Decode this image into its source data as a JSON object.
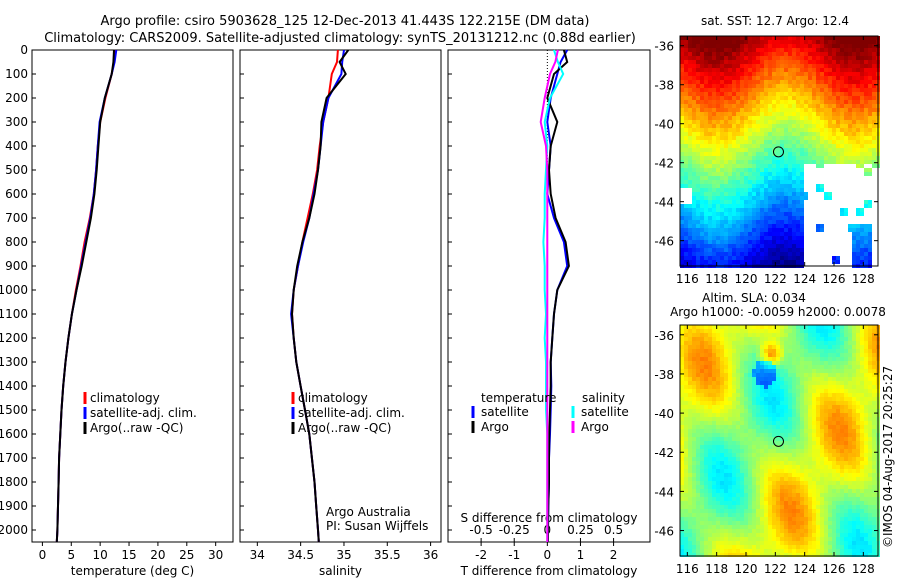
{
  "title_line1": "Argo profile: csiro 5903628_125 12-Dec-2013 41.443S 122.215E (DM data)",
  "title_line2": "Climatology: CARS2009. Satellite-adjusted climatology: synTS_20131212.nc (0.88d earlier)",
  "colors": {
    "climatology": "#ff0000",
    "satellite": "#0000ff",
    "argo": "#000000",
    "sal_satellite": "#00ffff",
    "sal_argo": "#ff00ff"
  },
  "chart_data": [
    {
      "type": "line",
      "xlabel": "temperature (deg C)",
      "ylabel": "depth",
      "xlim": [
        -1.8,
        33
      ],
      "ylim": [
        0,
        2050
      ],
      "xticks": [
        0,
        5,
        10,
        15,
        20,
        25,
        30
      ],
      "yticks": [
        0,
        100,
        200,
        300,
        400,
        500,
        600,
        700,
        800,
        900,
        1000,
        1100,
        1200,
        1300,
        1400,
        1500,
        1600,
        1700,
        1800,
        1900,
        2000
      ],
      "legend": [
        "climatology",
        "satellite-adj. clim.",
        "Argo(..raw -QC)"
      ],
      "depth": [
        0,
        50,
        100,
        200,
        300,
        400,
        500,
        600,
        700,
        800,
        900,
        1000,
        1100,
        1200,
        1300,
        1400,
        1500,
        1600,
        1700,
        1800,
        1900,
        2000,
        2050
      ],
      "series": [
        {
          "name": "climatology",
          "values": [
            12.6,
            12.4,
            12.0,
            10.9,
            10.0,
            9.6,
            9.3,
            8.9,
            8.2,
            7.3,
            6.6,
            5.8,
            5.1,
            4.5,
            4.0,
            3.6,
            3.3,
            3.1,
            2.9,
            2.8,
            2.7,
            2.6,
            2.5
          ]
        },
        {
          "name": "satellite-adj. clim.",
          "values": [
            12.8,
            12.5,
            12.0,
            10.8,
            9.9,
            9.6,
            9.3,
            8.9,
            8.3,
            7.5,
            6.7,
            5.9,
            5.1,
            4.5,
            4.0,
            3.6,
            3.3,
            3.1,
            2.9,
            2.8,
            2.7,
            2.6,
            2.5
          ]
        },
        {
          "name": "Argo(..raw -QC)",
          "values": [
            12.4,
            12.3,
            12.0,
            10.8,
            10.0,
            9.7,
            9.4,
            9.0,
            8.4,
            7.6,
            6.8,
            5.9,
            5.1,
            4.5,
            4.0,
            3.6,
            3.3,
            3.1,
            2.9,
            2.8,
            2.7,
            2.6,
            2.5
          ]
        }
      ]
    },
    {
      "type": "line",
      "xlabel": "salinity",
      "xlim": [
        33.8,
        36.12
      ],
      "ylim": [
        0,
        2050
      ],
      "xticks": [
        34,
        34.5,
        35,
        35.5,
        36
      ],
      "legend": [
        "climatology",
        "satellite-adj. clim.",
        "Argo(..raw -QC)"
      ],
      "annotation": [
        "Argo Australia",
        "PI: Susan Wijffels"
      ],
      "depth": [
        0,
        50,
        100,
        200,
        300,
        400,
        500,
        600,
        700,
        800,
        900,
        1000,
        1100,
        1200,
        1300,
        1400,
        1500,
        1600,
        1700,
        1800,
        1900,
        2000,
        2050
      ],
      "series": [
        {
          "name": "climatology",
          "values": [
            34.93,
            34.92,
            34.86,
            34.82,
            34.76,
            34.72,
            34.69,
            34.64,
            34.58,
            34.52,
            34.47,
            34.42,
            34.4,
            34.42,
            34.45,
            34.5,
            34.55,
            34.6,
            34.63,
            34.66,
            34.68,
            34.7,
            34.71
          ]
        },
        {
          "name": "satellite-adj. clim.",
          "values": [
            35.0,
            34.98,
            34.97,
            34.82,
            34.76,
            34.73,
            34.7,
            34.65,
            34.6,
            34.53,
            34.47,
            34.42,
            34.39,
            34.42,
            34.45,
            34.5,
            34.55,
            34.6,
            34.63,
            34.66,
            34.68,
            34.7,
            34.71
          ]
        },
        {
          "name": "Argo(..raw -QC)",
          "values": [
            35.05,
            34.95,
            35.02,
            34.8,
            34.74,
            34.73,
            34.7,
            34.66,
            34.6,
            34.52,
            34.46,
            34.42,
            34.4,
            34.42,
            34.45,
            34.5,
            34.55,
            34.6,
            34.63,
            34.66,
            34.68,
            34.7,
            34.71
          ]
        }
      ]
    },
    {
      "type": "line",
      "xlabel": "T difference from climatology",
      "xlabel2": "S difference from climatology",
      "xlim": [
        -3.0,
        3.1
      ],
      "ylim": [
        0,
        2050
      ],
      "xticks": [
        -2,
        -1,
        0,
        1,
        2
      ],
      "xticks2": [
        -0.5,
        -0.25,
        0,
        0.25,
        0.5
      ],
      "legend_headers": [
        "temperature",
        "salinity"
      ],
      "legend": [
        "satellite",
        "Argo",
        "satellite",
        "Argo"
      ],
      "depth": [
        0,
        50,
        100,
        200,
        300,
        400,
        500,
        600,
        700,
        800,
        900,
        1000,
        1100,
        1200,
        1300,
        1400,
        1500,
        1600,
        1700,
        1800,
        1900,
        2000,
        2050
      ],
      "series": [
        {
          "name": "T satellite",
          "values": [
            0.6,
            0.4,
            0.3,
            0.1,
            0.0,
            0.1,
            0.05,
            0.0,
            0.2,
            0.5,
            0.6,
            0.3,
            0.2,
            0.15,
            0.1,
            0.12,
            0.1,
            0.08,
            0.05,
            0.05,
            0.03,
            0.02,
            0.02
          ]
        },
        {
          "name": "T Argo",
          "values": [
            0.5,
            0.6,
            0.2,
            0.0,
            0.3,
            0.1,
            0.05,
            0.1,
            0.25,
            0.55,
            0.65,
            0.3,
            0.2,
            0.15,
            0.1,
            0.1,
            0.08,
            0.06,
            0.05,
            0.05,
            0.03,
            0.02,
            0.02
          ]
        },
        {
          "name": "S satellite",
          "values": [
            0.05,
            0.08,
            0.12,
            0.02,
            -0.02,
            0.0,
            -0.01,
            -0.02,
            -0.02,
            -0.03,
            -0.02,
            -0.02,
            -0.01,
            -0.02,
            -0.01,
            -0.01,
            -0.01,
            0.0,
            0.0,
            0.0,
            0.0,
            0.0,
            0.0
          ]
        },
        {
          "name": "S Argo",
          "values": [
            0.08,
            0.06,
            0.02,
            -0.02,
            -0.05,
            -0.01,
            0.0,
            0.0,
            0.0,
            0.0,
            0.0,
            0.0,
            0.0,
            0.0,
            0.0,
            0.0,
            0.0,
            0.0,
            0.0,
            0.0,
            0.0,
            0.0,
            0.0
          ]
        }
      ]
    },
    {
      "type": "heatmap",
      "title": "sat. SST: 12.7 Argo: 12.4",
      "xticks": [
        116,
        118,
        120,
        122,
        124,
        126,
        128
      ],
      "yticks": [
        -36,
        -38,
        -40,
        -42,
        -44,
        -46
      ],
      "xlim": [
        115.5,
        129
      ],
      "ylim": [
        -47.3,
        -35.5
      ],
      "marker": [
        122.215,
        -41.443
      ]
    },
    {
      "type": "heatmap",
      "title": "Altim. SLA: 0.034",
      "subtitle": "Argo h1000: -0.0059 h2000: 0.0078",
      "xticks": [
        116,
        118,
        120,
        122,
        124,
        126,
        128
      ],
      "yticks": [
        -36,
        -38,
        -40,
        -42,
        -44,
        -46
      ],
      "xlim": [
        115.5,
        129
      ],
      "ylim": [
        -47.3,
        -35.5
      ],
      "marker": [
        122.215,
        -41.443
      ]
    }
  ],
  "credit": "©IMOS 04-Aug-2017 20:25:27"
}
